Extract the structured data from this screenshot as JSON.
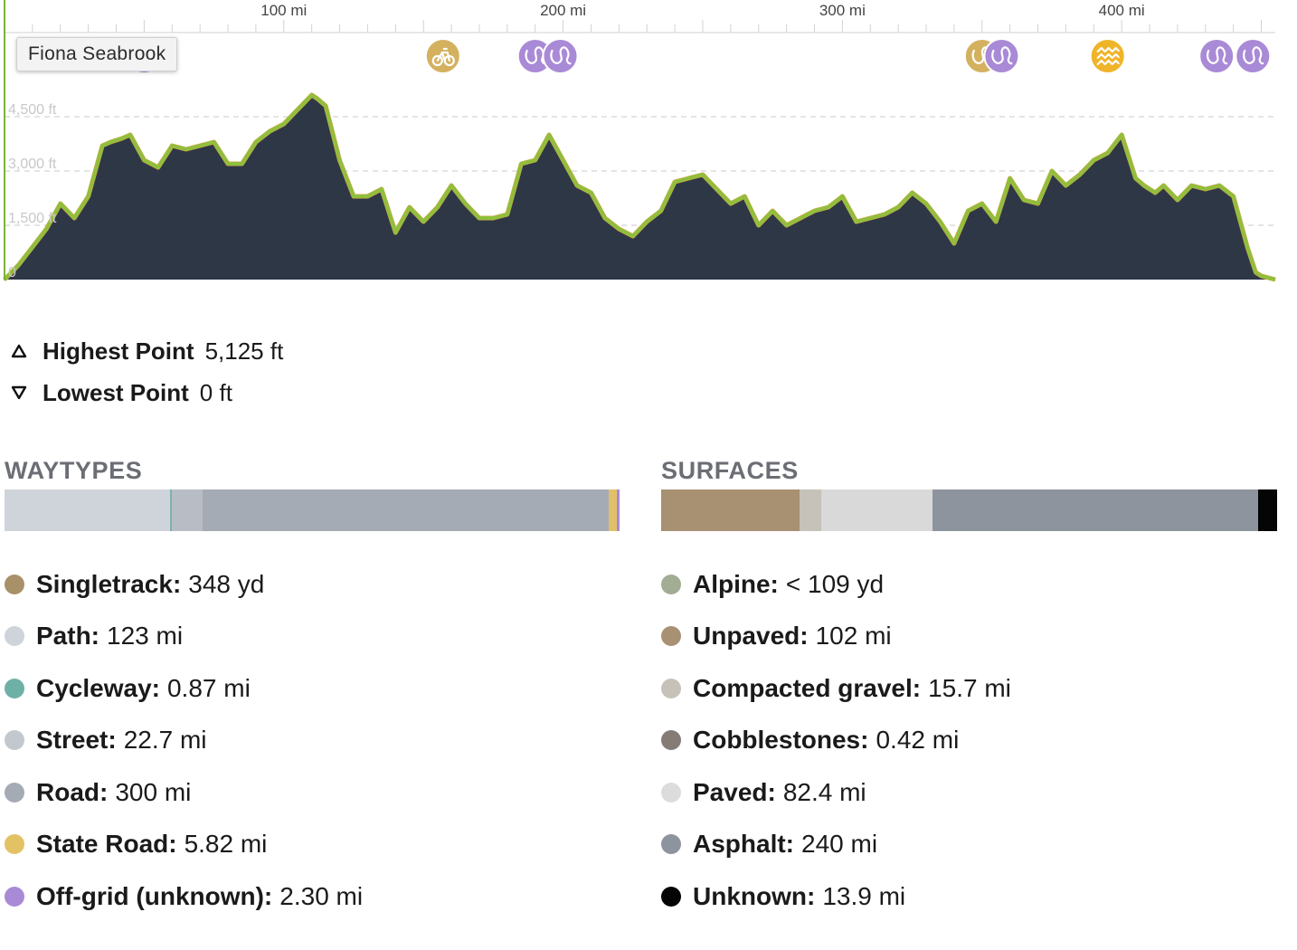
{
  "tooltip": "Fiona Seabrook",
  "chart_data": {
    "type": "area",
    "x_ticks": [
      {
        "value": 100,
        "label": "100 mi"
      },
      {
        "value": 200,
        "label": "200 mi"
      },
      {
        "value": 300,
        "label": "300 mi"
      },
      {
        "value": 400,
        "label": "400 mi"
      }
    ],
    "y_ticks": [
      {
        "value": 0,
        "label": "0"
      },
      {
        "value": 1500,
        "label": "1,500 ft"
      },
      {
        "value": 3000,
        "label": "3,000 ft"
      },
      {
        "value": 4500,
        "label": "4,500 ft"
      }
    ],
    "xlim": [
      0,
      455
    ],
    "ylim": [
      0,
      5125
    ],
    "grid": "horizontal-dashed",
    "x": [
      0,
      5,
      10,
      15,
      20,
      25,
      30,
      35,
      38,
      42,
      45,
      50,
      55,
      60,
      65,
      70,
      75,
      80,
      85,
      90,
      95,
      100,
      105,
      110,
      112,
      115,
      120,
      125,
      130,
      135,
      140,
      145,
      150,
      155,
      160,
      165,
      170,
      175,
      180,
      185,
      190,
      195,
      200,
      205,
      210,
      215,
      220,
      225,
      230,
      235,
      240,
      245,
      250,
      255,
      260,
      265,
      270,
      275,
      280,
      285,
      290,
      295,
      300,
      305,
      310,
      315,
      320,
      325,
      330,
      335,
      340,
      345,
      350,
      355,
      360,
      365,
      370,
      375,
      380,
      385,
      390,
      395,
      400,
      405,
      408,
      412,
      415,
      420,
      425,
      430,
      435,
      440,
      445,
      448,
      450,
      455
    ],
    "y": [
      0,
      400,
      900,
      1400,
      2100,
      1700,
      2300,
      3700,
      3800,
      3900,
      4000,
      3300,
      3100,
      3700,
      3600,
      3700,
      3800,
      3200,
      3200,
      3800,
      4100,
      4300,
      4700,
      5100,
      5000,
      4800,
      3300,
      2300,
      2300,
      2500,
      1300,
      2000,
      1600,
      2000,
      2600,
      2100,
      1700,
      1700,
      1800,
      3200,
      3300,
      4000,
      3300,
      2600,
      2400,
      1700,
      1400,
      1200,
      1600,
      1900,
      2700,
      2800,
      2900,
      2500,
      2100,
      2300,
      1500,
      1900,
      1500,
      1700,
      1900,
      2000,
      2300,
      1600,
      1700,
      1800,
      2000,
      2400,
      2100,
      1600,
      1000,
      1900,
      2100,
      1600,
      2800,
      2200,
      2100,
      3000,
      2600,
      2900,
      3300,
      3500,
      4000,
      2800,
      2600,
      2400,
      2600,
      2200,
      2600,
      2500,
      2600,
      2300,
      900,
      200,
      100,
      0
    ],
    "markers": [
      {
        "x": 50,
        "icon": "off-grid-icon",
        "color": "#a98ad6"
      },
      {
        "x": 157,
        "icon": "bicycle-icon",
        "color": "#d4b15f"
      },
      {
        "x": 190,
        "icon": "off-grid-icon",
        "color": "#a98ad6"
      },
      {
        "x": 199,
        "icon": "off-grid-icon",
        "color": "#a98ad6"
      },
      {
        "x": 350,
        "icon": "state-road-icon",
        "color": "#d4b15f"
      },
      {
        "x": 357,
        "icon": "off-grid-icon",
        "color": "#a98ad6"
      },
      {
        "x": 395,
        "icon": "waves-icon",
        "color": "#f0b429"
      },
      {
        "x": 434,
        "icon": "off-grid-icon",
        "color": "#a98ad6"
      },
      {
        "x": 447,
        "icon": "off-grid-icon",
        "color": "#a98ad6"
      }
    ]
  },
  "extremes": {
    "highest": {
      "label": "Highest Point",
      "value": "5,125 ft"
    },
    "lowest": {
      "label": "Lowest Point",
      "value": "0 ft"
    }
  },
  "waytypes": {
    "title": "WAYTYPES",
    "bar": [
      {
        "color": "#cfd4db",
        "share": 0.269
      },
      {
        "color": "#7cb3ab",
        "share": 0.0025
      },
      {
        "color": "#b8bdc5",
        "share": 0.051
      },
      {
        "color": "#a4abb5",
        "share": 0.66
      },
      {
        "color": "#e0c068",
        "share": 0.0128
      },
      {
        "color": "#a98ad6",
        "share": 0.0047
      }
    ],
    "items": [
      {
        "name": "Singletrack:",
        "value": "348 yd",
        "color": "#a89069"
      },
      {
        "name": "Path:",
        "value": "123 mi",
        "color": "#cfd4db"
      },
      {
        "name": "Cycleway:",
        "value": "0.87 mi",
        "color": "#6fb0a6"
      },
      {
        "name": "Street:",
        "value": "22.7 mi",
        "color": "#c3c8cf"
      },
      {
        "name": "Road:",
        "value": "300 mi",
        "color": "#a4abb5"
      },
      {
        "name": "State Road:",
        "value": "5.82 mi",
        "color": "#e3c266"
      },
      {
        "name": "Off-grid (unknown):",
        "value": "2.30 mi",
        "color": "#a98ad6"
      }
    ]
  },
  "surfaces": {
    "title": "SURFACES",
    "bar": [
      {
        "color": "#a89072",
        "share": 0.225
      },
      {
        "color": "#c7c2b9",
        "share": 0.0345
      },
      {
        "color": "#d9d9d9",
        "share": 0.181
      },
      {
        "color": "#8d949d",
        "share": 0.529
      },
      {
        "color": "#050505",
        "share": 0.0305
      }
    ],
    "items": [
      {
        "name": "Alpine:",
        "value": "< 109 yd",
        "color": "#a2ad94"
      },
      {
        "name": "Unpaved:",
        "value": "102 mi",
        "color": "#a89072"
      },
      {
        "name": "Compacted gravel:",
        "value": "15.7 mi",
        "color": "#c7c2b9"
      },
      {
        "name": "Cobblestones:",
        "value": "0.42 mi",
        "color": "#857c77"
      },
      {
        "name": "Paved:",
        "value": "82.4 mi",
        "color": "#dcdcdc"
      },
      {
        "name": "Asphalt:",
        "value": "240 mi",
        "color": "#8d949d"
      },
      {
        "name": "Unknown:",
        "value": "13.9 mi",
        "color": "#050505"
      }
    ]
  }
}
